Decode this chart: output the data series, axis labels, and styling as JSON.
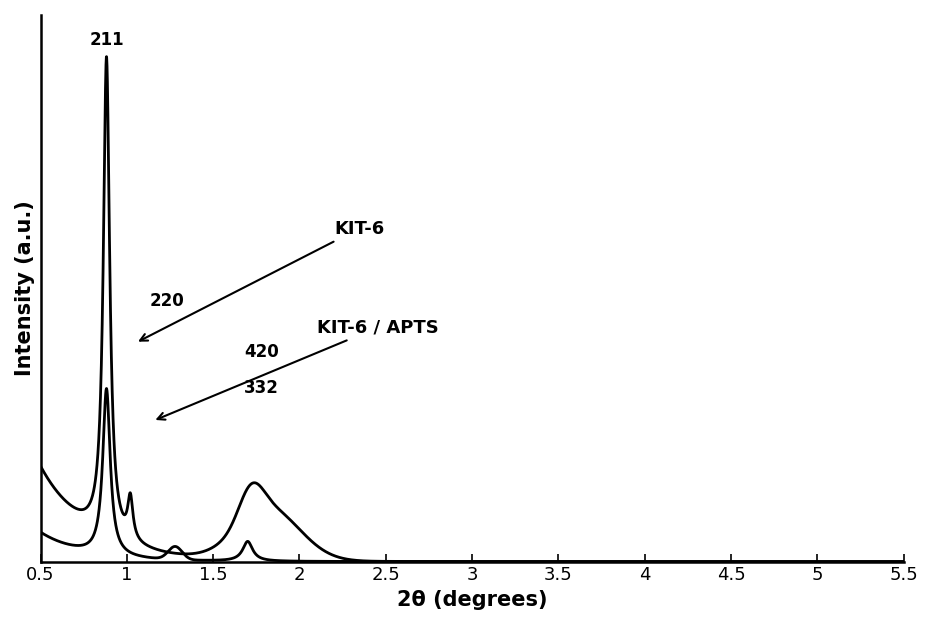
{
  "xlim": [
    0.5,
    5.5
  ],
  "ylim": [
    0,
    1.05
  ],
  "xlabel": "2θ (degrees)",
  "ylabel": "Intensity (a.u.)",
  "background_color": "#ffffff",
  "line_color": "#000000",
  "tick_fontsize": 13,
  "label_fontsize": 15,
  "xticks": [
    0.5,
    1.0,
    1.5,
    2.0,
    2.5,
    3.0,
    3.5,
    4.0,
    4.5,
    5.0,
    5.5
  ]
}
